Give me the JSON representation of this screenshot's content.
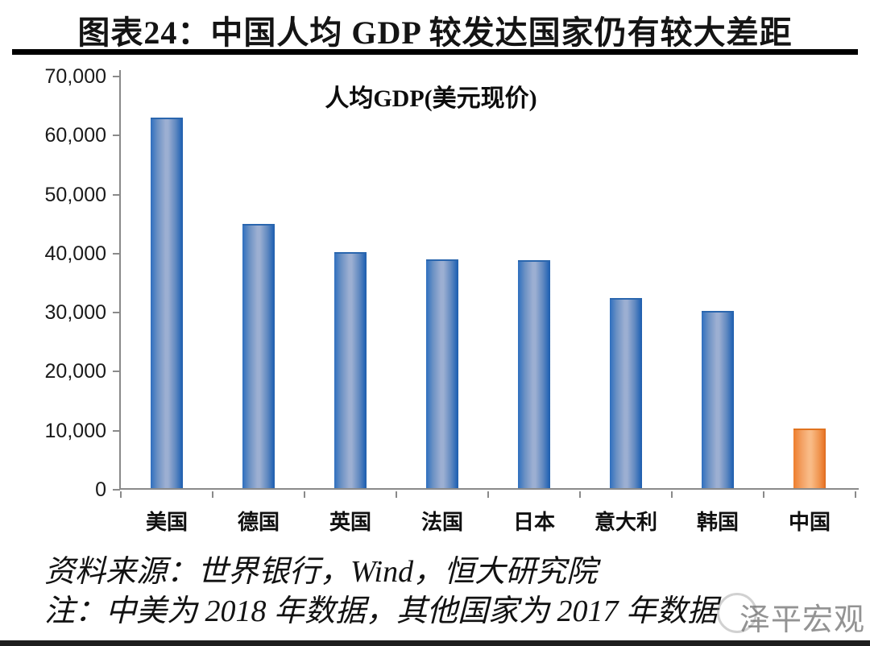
{
  "header": {
    "title": "图表24：中国人均 GDP 较发达国家仍有较大差距"
  },
  "chart_data": {
    "type": "bar",
    "title": "人均GDP(美元现价)",
    "categories": [
      "美国",
      "德国",
      "英国",
      "法国",
      "日本",
      "意大利",
      "韩国",
      "中国"
    ],
    "values": [
      62500,
      44500,
      39700,
      38500,
      38400,
      31950,
      29700,
      9770
    ],
    "xlabel": "",
    "ylabel": "",
    "ylim": [
      0,
      70000
    ],
    "ytick_step": 10000,
    "ytick_labels": [
      "0",
      "10,000",
      "20,000",
      "30,000",
      "40,000",
      "50,000",
      "60,000",
      "70,000"
    ],
    "grid": false,
    "legend_position": "none",
    "highlight_index": 7,
    "colors": {
      "bar_default": "#2e6fbf",
      "bar_highlight": "#ee7e2c",
      "axis": "#8a8a8a"
    }
  },
  "footer": {
    "source": "资料来源：世界银行，Wind，恒大研究院",
    "note": "注：中美为 2018 年数据，其他国家为 2017 年数据"
  },
  "watermark": {
    "text": "泽平宏观"
  }
}
